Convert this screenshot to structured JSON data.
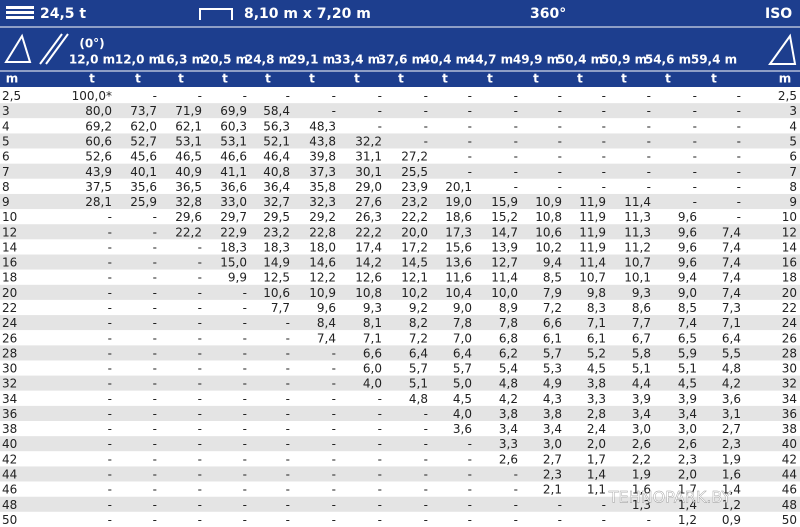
{
  "header": {
    "weight": "24,5 t",
    "outriggers": "8,10 m x 7,20 m",
    "rotation": "360°",
    "standard": "ISO"
  },
  "table": {
    "angle_note": "(0°)",
    "columns": [
      "12,0 m",
      "12,0 m",
      "16,3 m",
      "20,5 m",
      "24,8 m",
      "29,1 m",
      "33,4 m",
      "37,6 m",
      "40,4 m",
      "44,7 m",
      "49,9 m",
      "50,4 m",
      "50,9 m",
      "54,6 m",
      "59,4 m"
    ],
    "units": [
      "m",
      "t",
      "t",
      "t",
      "t",
      "t",
      "t",
      "t",
      "t",
      "t",
      "t",
      "t",
      "t",
      "t",
      "t",
      "t",
      "m"
    ],
    "rows": [
      [
        "2,5",
        "100,0*",
        "-",
        "-",
        "-",
        "-",
        "-",
        "-",
        "-",
        "-",
        "-",
        "-",
        "-",
        "-",
        "-",
        "-",
        "2,5"
      ],
      [
        "3",
        "80,0",
        "73,7",
        "71,9",
        "69,9",
        "58,4",
        "-",
        "-",
        "-",
        "-",
        "-",
        "-",
        "-",
        "-",
        "-",
        "-",
        "3"
      ],
      [
        "4",
        "69,2",
        "62,0",
        "62,1",
        "60,3",
        "56,3",
        "48,3",
        "-",
        "-",
        "-",
        "-",
        "-",
        "-",
        "-",
        "-",
        "-",
        "4"
      ],
      [
        "5",
        "60,6",
        "52,7",
        "53,1",
        "53,1",
        "52,1",
        "43,8",
        "32,2",
        "-",
        "-",
        "-",
        "-",
        "-",
        "-",
        "-",
        "-",
        "5"
      ],
      [
        "6",
        "52,6",
        "45,6",
        "46,5",
        "46,6",
        "46,4",
        "39,8",
        "31,1",
        "27,2",
        "-",
        "-",
        "-",
        "-",
        "-",
        "-",
        "-",
        "6"
      ],
      [
        "7",
        "43,9",
        "40,1",
        "40,9",
        "41,1",
        "40,8",
        "37,3",
        "30,1",
        "25,5",
        "-",
        "-",
        "-",
        "-",
        "-",
        "-",
        "-",
        "7"
      ],
      [
        "8",
        "37,5",
        "35,6",
        "36,5",
        "36,6",
        "36,4",
        "35,8",
        "29,0",
        "23,9",
        "20,1",
        "-",
        "-",
        "-",
        "-",
        "-",
        "-",
        "8"
      ],
      [
        "9",
        "28,1",
        "25,9",
        "32,8",
        "33,0",
        "32,7",
        "32,3",
        "27,6",
        "23,2",
        "19,0",
        "15,9",
        "10,9",
        "11,9",
        "11,4",
        "-",
        "-",
        "9"
      ],
      [
        "10",
        "-",
        "-",
        "29,6",
        "29,7",
        "29,5",
        "29,2",
        "26,3",
        "22,2",
        "18,6",
        "15,2",
        "10,8",
        "11,9",
        "11,3",
        "9,6",
        "-",
        "10"
      ],
      [
        "12",
        "-",
        "-",
        "22,2",
        "22,9",
        "23,2",
        "22,8",
        "22,2",
        "20,0",
        "17,3",
        "14,7",
        "10,6",
        "11,9",
        "11,3",
        "9,6",
        "7,4",
        "12"
      ],
      [
        "14",
        "-",
        "-",
        "-",
        "18,3",
        "18,3",
        "18,0",
        "17,4",
        "17,2",
        "15,6",
        "13,9",
        "10,2",
        "11,9",
        "11,2",
        "9,6",
        "7,4",
        "14"
      ],
      [
        "16",
        "-",
        "-",
        "-",
        "15,0",
        "14,9",
        "14,6",
        "14,2",
        "14,5",
        "13,6",
        "12,7",
        "9,4",
        "11,4",
        "10,7",
        "9,6",
        "7,4",
        "16"
      ],
      [
        "18",
        "-",
        "-",
        "-",
        "9,9",
        "12,5",
        "12,2",
        "12,6",
        "12,1",
        "11,6",
        "11,4",
        "8,5",
        "10,7",
        "10,1",
        "9,4",
        "7,4",
        "18"
      ],
      [
        "20",
        "-",
        "-",
        "-",
        "-",
        "10,6",
        "10,9",
        "10,8",
        "10,2",
        "10,4",
        "10,0",
        "7,9",
        "9,8",
        "9,3",
        "9,0",
        "7,4",
        "20"
      ],
      [
        "22",
        "-",
        "-",
        "-",
        "-",
        "7,7",
        "9,6",
        "9,3",
        "9,2",
        "9,0",
        "8,9",
        "7,2",
        "8,3",
        "8,6",
        "8,5",
        "7,3",
        "22"
      ],
      [
        "24",
        "-",
        "-",
        "-",
        "-",
        "-",
        "8,4",
        "8,1",
        "8,2",
        "7,8",
        "7,8",
        "6,6",
        "7,1",
        "7,7",
        "7,4",
        "7,1",
        "24"
      ],
      [
        "26",
        "-",
        "-",
        "-",
        "-",
        "-",
        "7,4",
        "7,1",
        "7,2",
        "7,0",
        "6,8",
        "6,1",
        "6,1",
        "6,7",
        "6,5",
        "6,4",
        "26"
      ],
      [
        "28",
        "-",
        "-",
        "-",
        "-",
        "-",
        "-",
        "6,6",
        "6,4",
        "6,4",
        "6,2",
        "5,7",
        "5,2",
        "5,8",
        "5,9",
        "5,5",
        "28"
      ],
      [
        "30",
        "-",
        "-",
        "-",
        "-",
        "-",
        "-",
        "6,0",
        "5,7",
        "5,7",
        "5,4",
        "5,3",
        "4,5",
        "5,1",
        "5,1",
        "4,8",
        "30"
      ],
      [
        "32",
        "-",
        "-",
        "-",
        "-",
        "-",
        "-",
        "4,0",
        "5,1",
        "5,0",
        "4,8",
        "4,9",
        "3,8",
        "4,4",
        "4,5",
        "4,2",
        "32"
      ],
      [
        "34",
        "-",
        "-",
        "-",
        "-",
        "-",
        "-",
        "-",
        "4,8",
        "4,5",
        "4,2",
        "4,3",
        "3,3",
        "3,9",
        "3,9",
        "3,6",
        "34"
      ],
      [
        "36",
        "-",
        "-",
        "-",
        "-",
        "-",
        "-",
        "-",
        "-",
        "4,0",
        "3,8",
        "3,8",
        "2,8",
        "3,4",
        "3,4",
        "3,1",
        "36"
      ],
      [
        "38",
        "-",
        "-",
        "-",
        "-",
        "-",
        "-",
        "-",
        "-",
        "3,6",
        "3,4",
        "3,4",
        "2,4",
        "3,0",
        "3,0",
        "2,7",
        "38"
      ],
      [
        "40",
        "-",
        "-",
        "-",
        "-",
        "-",
        "-",
        "-",
        "-",
        "-",
        "3,3",
        "3,0",
        "2,0",
        "2,6",
        "2,6",
        "2,3",
        "40"
      ],
      [
        "42",
        "-",
        "-",
        "-",
        "-",
        "-",
        "-",
        "-",
        "-",
        "-",
        "2,6",
        "2,7",
        "1,7",
        "2,2",
        "2,3",
        "1,9",
        "42"
      ],
      [
        "44",
        "-",
        "-",
        "-",
        "-",
        "-",
        "-",
        "-",
        "-",
        "-",
        "-",
        "2,3",
        "1,4",
        "1,9",
        "2,0",
        "1,6",
        "44"
      ],
      [
        "46",
        "-",
        "-",
        "-",
        "-",
        "-",
        "-",
        "-",
        "-",
        "-",
        "-",
        "2,1",
        "1,1",
        "1,6",
        "1,7",
        "1,4",
        "46"
      ],
      [
        "48",
        "-",
        "-",
        "-",
        "-",
        "-",
        "-",
        "-",
        "-",
        "-",
        "-",
        "-",
        "-",
        "1,3",
        "1,4",
        "1,2",
        "48"
      ],
      [
        "50",
        "-",
        "-",
        "-",
        "-",
        "-",
        "-",
        "-",
        "-",
        "-",
        "-",
        "-",
        "-",
        "-",
        "1,2",
        "0,9",
        "50"
      ]
    ]
  },
  "watermark": "TEHNOPARK.BY"
}
